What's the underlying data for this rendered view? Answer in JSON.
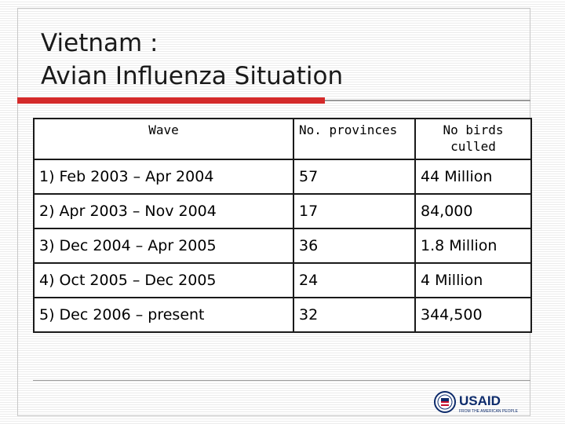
{
  "slide": {
    "title_line1": "Vietnam :",
    "title_line2": "Avian Influenza Situation"
  },
  "table": {
    "headers": [
      "Wave",
      "No. provinces",
      "No birds culled"
    ],
    "rows": [
      {
        "wave": "1) Feb 2003 – Apr 2004",
        "provinces": "57",
        "birds_culled": "44 Million"
      },
      {
        "wave": "2) Apr 2003 – Nov 2004",
        "provinces": "17",
        "birds_culled": "84,000"
      },
      {
        "wave": "3) Dec 2004 – Apr 2005",
        "provinces": "36",
        "birds_culled": "1.8 Million"
      },
      {
        "wave": "4) Oct 2005 – Dec 2005",
        "provinces": "24",
        "birds_culled": "4 Million"
      },
      {
        "wave": "5) Dec 2006 – present",
        "provinces": "32",
        "birds_culled": "344,500"
      }
    ]
  },
  "logo": {
    "text": "USAID",
    "tagline": "FROM THE AMERICAN PEOPLE",
    "colors": {
      "navy": "#0d2b6b",
      "red": "#c8102e"
    }
  },
  "colors": {
    "accent_red": "#d42a2a",
    "rule_gray": "#9a9a9a"
  }
}
